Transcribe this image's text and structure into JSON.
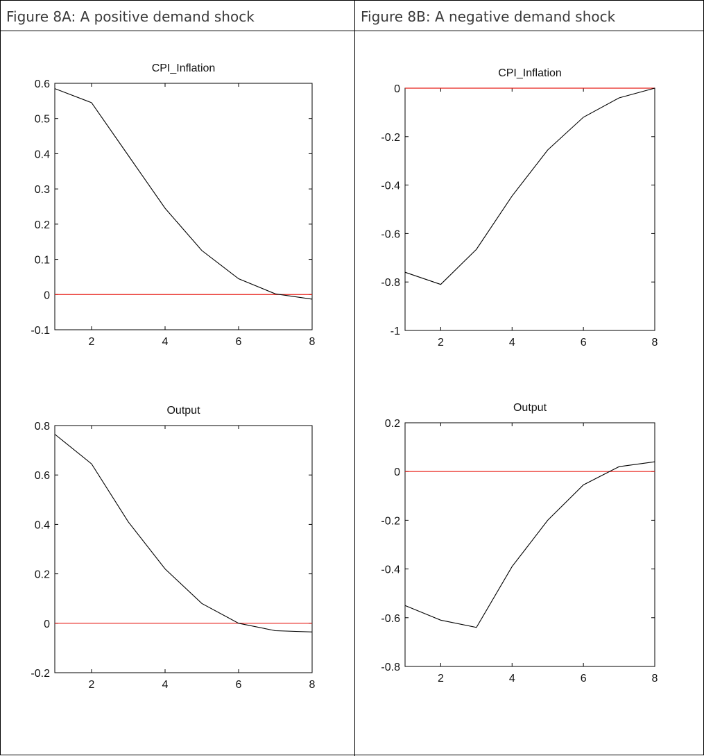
{
  "panels": {
    "left_header": "Figure 8A: A positive demand shock",
    "right_header": "Figure 8B: A negative demand shock"
  },
  "colors": {
    "series_line": "#000000",
    "zero_line": "#e8201a",
    "axis": "#000000"
  },
  "chart_data": [
    {
      "type": "line",
      "panel": "Figure 8A: A positive demand shock",
      "title": "CPI_Inflation",
      "x": [
        1,
        2,
        3,
        4,
        5,
        6,
        7,
        8
      ],
      "series": [
        {
          "values": [
            0.585,
            0.545,
            0.395,
            0.245,
            0.125,
            0.045,
            0.002,
            -0.013
          ]
        }
      ],
      "reference_line": 0,
      "xlim": [
        1,
        8
      ],
      "ylim": [
        -0.1,
        0.6
      ],
      "xticks": [
        2,
        4,
        6,
        8
      ],
      "yticks": [
        0.6,
        0.5,
        0.4,
        0.3,
        0.2,
        0.1,
        0,
        -0.1
      ],
      "xtick_labels": [
        "2",
        "4",
        "6",
        "8"
      ],
      "ytick_labels": [
        "0.6",
        "0.5",
        "0.4",
        "0.3",
        "0.2",
        "0.1",
        "0",
        "-0.1"
      ],
      "grid": false
    },
    {
      "type": "line",
      "panel": "Figure 8A: A positive demand shock",
      "title": "Output",
      "x": [
        1,
        2,
        3,
        4,
        5,
        6,
        7,
        8
      ],
      "series": [
        {
          "values": [
            0.765,
            0.645,
            0.41,
            0.22,
            0.08,
            0.0,
            -0.03,
            -0.035
          ]
        }
      ],
      "reference_line": 0,
      "xlim": [
        1,
        8
      ],
      "ylim": [
        -0.2,
        0.8
      ],
      "xticks": [
        2,
        4,
        6,
        8
      ],
      "yticks": [
        0.8,
        0.6,
        0.4,
        0.2,
        0,
        -0.2
      ],
      "xtick_labels": [
        "2",
        "4",
        "6",
        "8"
      ],
      "ytick_labels": [
        "0.8",
        "0.6",
        "0.4",
        "0.2",
        "0",
        "-0.2"
      ],
      "grid": false
    },
    {
      "type": "line",
      "panel": "Figure 8B: A negative demand shock",
      "title": "CPI_Inflation",
      "x": [
        1,
        2,
        3,
        4,
        5,
        6,
        7,
        8
      ],
      "series": [
        {
          "values": [
            -0.76,
            -0.81,
            -0.665,
            -0.445,
            -0.255,
            -0.12,
            -0.04,
            0.0
          ]
        }
      ],
      "reference_line": 0,
      "xlim": [
        1,
        8
      ],
      "ylim": [
        -1,
        0
      ],
      "xticks": [
        2,
        4,
        6,
        8
      ],
      "yticks": [
        0,
        -0.2,
        -0.4,
        -0.6,
        -0.8,
        -1
      ],
      "xtick_labels": [
        "2",
        "4",
        "6",
        "8"
      ],
      "ytick_labels": [
        "0",
        "-0.2",
        "-0.4",
        "-0.6",
        "-0.8",
        "-1"
      ],
      "grid": false
    },
    {
      "type": "line",
      "panel": "Figure 8B: A negative demand shock",
      "title": "Output",
      "x": [
        1,
        2,
        3,
        4,
        5,
        6,
        7,
        8
      ],
      "series": [
        {
          "values": [
            -0.55,
            -0.61,
            -0.64,
            -0.39,
            -0.2,
            -0.055,
            0.02,
            0.04
          ]
        }
      ],
      "reference_line": 0,
      "xlim": [
        1,
        8
      ],
      "ylim": [
        -0.8,
        0.2
      ],
      "xticks": [
        2,
        4,
        6,
        8
      ],
      "yticks": [
        0.2,
        0,
        -0.2,
        -0.4,
        -0.6,
        -0.8
      ],
      "xtick_labels": [
        "2",
        "4",
        "6",
        "8"
      ],
      "ytick_labels": [
        "0.2",
        "0",
        "-0.2",
        "-0.4",
        "-0.6",
        "-0.8"
      ],
      "grid": false
    }
  ]
}
